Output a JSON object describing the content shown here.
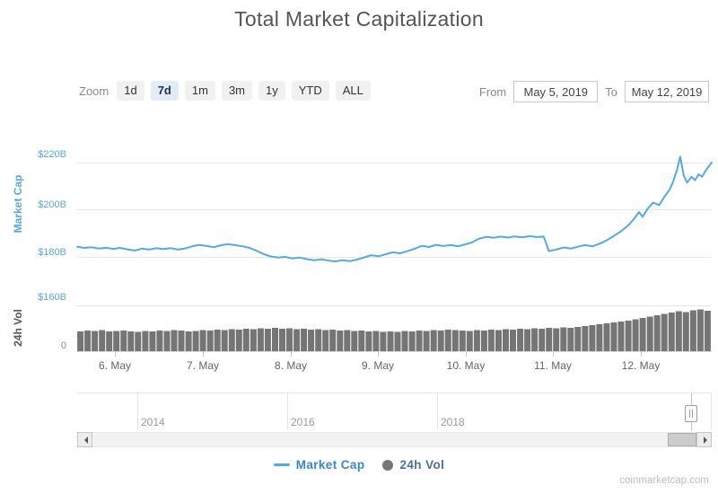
{
  "title": "Total Market Capitalization",
  "watermark": "coinmarketcap.com",
  "colors": {
    "line-blue": "#54aadf",
    "bar-gray": "#757575",
    "axis-blue": "#58a8db",
    "vol-axis-gray": "#555555",
    "title-gray": "#555555",
    "selected-btn-bg": "#e4eaf6",
    "selected-btn-text": "#16325c",
    "legend-mc-text": "#3c87c2",
    "legend-vol-text": "#4a7298"
  },
  "controls": {
    "zoom_label": "Zoom",
    "zoom_buttons": [
      {
        "label": "1d",
        "selected": false
      },
      {
        "label": "7d",
        "selected": true
      },
      {
        "label": "1m",
        "selected": false
      },
      {
        "label": "3m",
        "selected": false
      },
      {
        "label": "1y",
        "selected": false
      },
      {
        "label": "YTD",
        "selected": false
      },
      {
        "label": "ALL",
        "selected": false
      }
    ],
    "from_label": "From",
    "from_value": "May 5, 2019",
    "to_label": "To",
    "to_value": "May 12, 2019"
  },
  "legend": {
    "market_cap": "Market Cap",
    "vol": "24h Vol"
  },
  "navigator": {
    "years": [
      "2014",
      "2016",
      "2018"
    ]
  },
  "chart_data": {
    "type": "line+bar stock chart",
    "title": "Total Market Capitalization",
    "x_unit": "date (May 2019)",
    "x_labels": [
      "6. May",
      "7. May",
      "8. May",
      "9. May",
      "10. May",
      "11. May",
      "12. May"
    ],
    "x_tick_days": [
      6,
      7,
      8,
      9,
      10,
      11,
      12
    ],
    "x_range_days": [
      5.57,
      12.82
    ],
    "market_cap_pane": {
      "ylabel": "Market Cap",
      "y_tick_labels": [
        "$220B",
        "$200B",
        "$180B",
        "$160B"
      ],
      "y_tick_values": [
        220,
        200,
        180,
        160
      ],
      "unit": "USD billions",
      "grid": true,
      "series_name": "Market Cap",
      "points": [
        [
          5.57,
          184.3
        ],
        [
          5.65,
          183.8
        ],
        [
          5.73,
          184.1
        ],
        [
          5.82,
          183.5
        ],
        [
          5.9,
          183.9
        ],
        [
          5.98,
          183.4
        ],
        [
          6.06,
          183.8
        ],
        [
          6.14,
          183.2
        ],
        [
          6.23,
          182.7
        ],
        [
          6.31,
          183.5
        ],
        [
          6.39,
          183.1
        ],
        [
          6.47,
          183.7
        ],
        [
          6.55,
          183.3
        ],
        [
          6.64,
          183.7
        ],
        [
          6.72,
          183.1
        ],
        [
          6.8,
          183.6
        ],
        [
          6.88,
          184.4
        ],
        [
          6.96,
          185.1
        ],
        [
          7.05,
          184.6
        ],
        [
          7.13,
          184.1
        ],
        [
          7.21,
          184.9
        ],
        [
          7.29,
          185.4
        ],
        [
          7.37,
          185.0
        ],
        [
          7.46,
          184.5
        ],
        [
          7.54,
          183.8
        ],
        [
          7.62,
          182.6
        ],
        [
          7.7,
          181.2
        ],
        [
          7.78,
          180.2
        ],
        [
          7.87,
          179.7
        ],
        [
          7.95,
          180.0
        ],
        [
          8.03,
          179.3
        ],
        [
          8.11,
          179.7
        ],
        [
          8.2,
          179.0
        ],
        [
          8.28,
          178.6
        ],
        [
          8.36,
          179.0
        ],
        [
          8.44,
          178.4
        ],
        [
          8.52,
          178.1
        ],
        [
          8.6,
          178.6
        ],
        [
          8.69,
          178.2
        ],
        [
          8.77,
          178.9
        ],
        [
          8.85,
          179.8
        ],
        [
          8.93,
          180.7
        ],
        [
          9.02,
          180.3
        ],
        [
          9.1,
          181.2
        ],
        [
          9.18,
          182.0
        ],
        [
          9.26,
          181.5
        ],
        [
          9.34,
          182.4
        ],
        [
          9.43,
          183.5
        ],
        [
          9.51,
          184.7
        ],
        [
          9.59,
          184.2
        ],
        [
          9.67,
          185.1
        ],
        [
          9.75,
          184.6
        ],
        [
          9.84,
          185.0
        ],
        [
          9.92,
          184.5
        ],
        [
          10.0,
          185.3
        ],
        [
          10.08,
          186.1
        ],
        [
          10.16,
          187.7
        ],
        [
          10.25,
          188.5
        ],
        [
          10.33,
          188.1
        ],
        [
          10.41,
          188.6
        ],
        [
          10.49,
          188.2
        ],
        [
          10.57,
          188.7
        ],
        [
          10.66,
          188.3
        ],
        [
          10.74,
          188.8
        ],
        [
          10.82,
          188.4
        ],
        [
          10.9,
          188.6
        ],
        [
          10.96,
          182.4
        ],
        [
          11.05,
          183.2
        ],
        [
          11.13,
          184.0
        ],
        [
          11.21,
          183.5
        ],
        [
          11.29,
          184.3
        ],
        [
          11.37,
          185.0
        ],
        [
          11.46,
          184.5
        ],
        [
          11.54,
          185.6
        ],
        [
          11.62,
          187.0
        ],
        [
          11.7,
          188.8
        ],
        [
          11.79,
          191.0
        ],
        [
          11.87,
          193.5
        ],
        [
          11.93,
          196.0
        ],
        [
          11.99,
          199.0
        ],
        [
          12.03,
          197.0
        ],
        [
          12.09,
          200.5
        ],
        [
          12.15,
          203.0
        ],
        [
          12.22,
          202.0
        ],
        [
          12.28,
          205.5
        ],
        [
          12.34,
          208.5
        ],
        [
          12.38,
          212.0
        ],
        [
          12.42,
          216.5
        ],
        [
          12.46,
          222.5
        ],
        [
          12.5,
          214.5
        ],
        [
          12.54,
          211.5
        ],
        [
          12.59,
          214.0
        ],
        [
          12.63,
          212.5
        ],
        [
          12.67,
          215.0
        ],
        [
          12.71,
          214.0
        ],
        [
          12.75,
          216.5
        ],
        [
          12.79,
          218.5
        ],
        [
          12.82,
          220.0
        ]
      ]
    },
    "volume_pane": {
      "ylabel": "24h Vol",
      "y_tick_labels": [
        "0"
      ],
      "unit": "USD billions (approx)",
      "series_name": "24h Vol",
      "ylim": [
        0,
        100
      ],
      "start_day": 5.57,
      "end_day": 12.82,
      "values": [
        44,
        46,
        45,
        47,
        44,
        45,
        46,
        44,
        43,
        45,
        44,
        46,
        45,
        47,
        46,
        44,
        45,
        47,
        46,
        48,
        47,
        49,
        48,
        50,
        49,
        51,
        50,
        52,
        50,
        51,
        49,
        50,
        48,
        49,
        47,
        48,
        46,
        47,
        45,
        46,
        44,
        45,
        43,
        44,
        43,
        45,
        44,
        46,
        45,
        47,
        46,
        48,
        47,
        46,
        45,
        47,
        46,
        48,
        47,
        49,
        48,
        50,
        49,
        51,
        50,
        52,
        51,
        53,
        52,
        54,
        56,
        58,
        60,
        62,
        64,
        66,
        68,
        71,
        74,
        77,
        80,
        83,
        86,
        89,
        87,
        91,
        93,
        90
      ]
    },
    "navigator_years": [
      "2014",
      "2016",
      "2018"
    ]
  }
}
